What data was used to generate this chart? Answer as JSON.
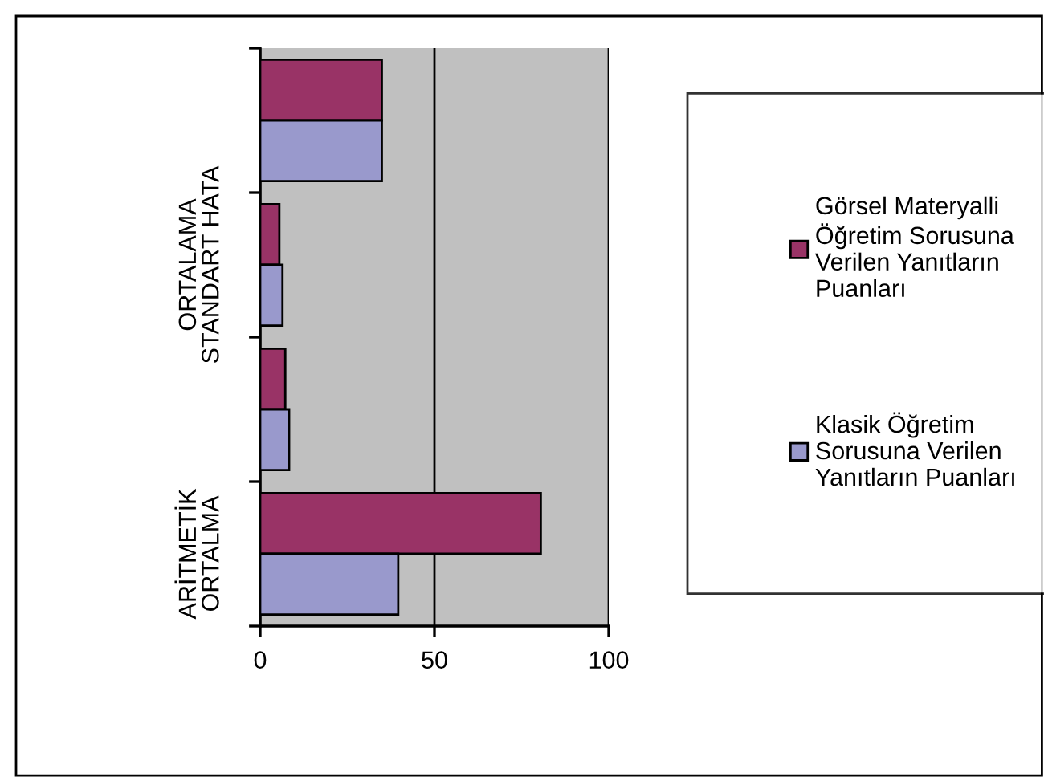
{
  "chart_data": {
    "type": "bar",
    "orientation": "horizontal",
    "categories": [
      null,
      "ORTALAMA\nSTANDART HATA",
      null,
      "ARİTMETİK\nORTALMA"
    ],
    "series": [
      {
        "name": "Görsel Materyalli\nÖğretim Sorusuna\nVerilen Yanıtların\nPuanları",
        "color": "#993366",
        "values": [
          34.9,
          5.5,
          7.2,
          80.5
        ]
      },
      {
        "name": "Klasik Öğretim\nSorusuna Verilen\nYanıtların Puanları",
        "color": "#9999cc",
        "values": [
          34.9,
          6.4,
          8.3,
          39.6
        ]
      }
    ],
    "xlim": [
      0,
      100
    ],
    "xticks": [
      0,
      50,
      100
    ],
    "grid": "x",
    "legend": "right"
  }
}
